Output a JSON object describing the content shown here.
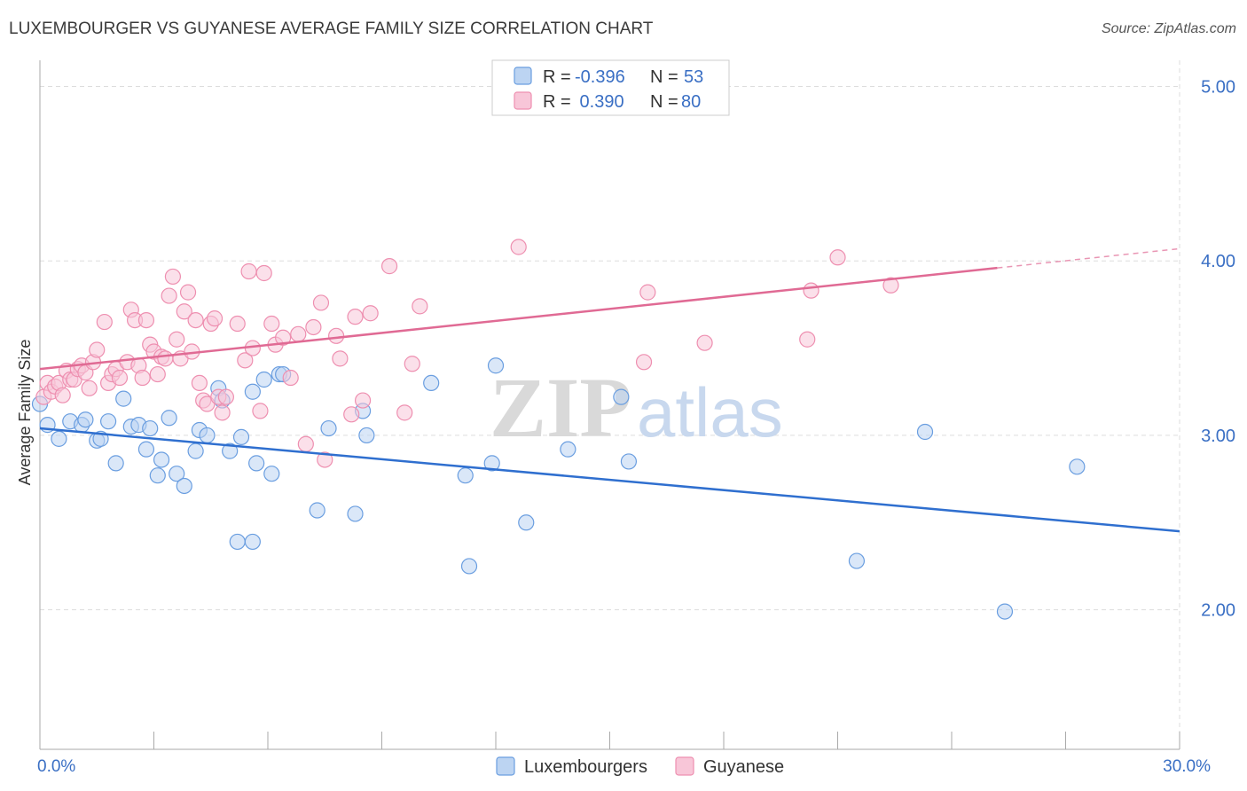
{
  "title": "LUXEMBOURGER VS GUYANESE AVERAGE FAMILY SIZE CORRELATION CHART",
  "source": "Source: ZipAtlas.com",
  "watermark": {
    "zip": "ZIP",
    "atlas": "atlas"
  },
  "colors": {
    "blue": "#6a9ee0",
    "blue_fill": "#bcd4f2",
    "blue_line": "#2f6fcf",
    "pink": "#ee8fb0",
    "pink_fill": "#f8c6d8",
    "pink_line": "#e06a94",
    "axis_label": "#3a6fc4",
    "grid": "#dddddd"
  },
  "legend": {
    "rows": [
      {
        "r_label": "R =",
        "r_value": "-0.396",
        "n_label": "N =",
        "n_value": "53"
      },
      {
        "r_label": "R =",
        "r_value": " 0.390",
        "n_label": "N =",
        "n_value": "80"
      }
    ]
  },
  "chart_data": {
    "type": "scatter",
    "title": "LUXEMBOURGER VS GUYANESE AVERAGE FAMILY SIZE CORRELATION CHART",
    "xlabel": "",
    "ylabel": "Average Family Size",
    "xlim": [
      0,
      30
    ],
    "ylim": [
      1.2,
      5.15
    ],
    "x_tick_labels": [
      {
        "value": 0,
        "label": "0.0%"
      },
      {
        "value": 30,
        "label": "30.0%"
      }
    ],
    "y_tick_labels": [
      {
        "value": 2,
        "label": "2.00"
      },
      {
        "value": 3,
        "label": "3.00"
      },
      {
        "value": 4,
        "label": "4.00"
      },
      {
        "value": 5,
        "label": "5.00"
      }
    ],
    "grid": true,
    "legend_position": "top-center",
    "series": [
      {
        "name": "Luxembourgers",
        "r": -0.396,
        "n": 53,
        "trend": {
          "x0": 0,
          "y0": 3.04,
          "x1": 30,
          "y1": 2.45,
          "solid_until": 30
        },
        "points": [
          [
            0.2,
            3.06
          ],
          [
            0.5,
            2.98
          ],
          [
            0.8,
            3.08
          ],
          [
            1.1,
            3.06
          ],
          [
            1.2,
            3.09
          ],
          [
            1.5,
            2.97
          ],
          [
            1.6,
            2.98
          ],
          [
            1.8,
            3.08
          ],
          [
            2.0,
            2.84
          ],
          [
            2.2,
            3.21
          ],
          [
            2.4,
            3.05
          ],
          [
            2.6,
            3.06
          ],
          [
            2.8,
            2.92
          ],
          [
            2.9,
            3.04
          ],
          [
            3.1,
            2.77
          ],
          [
            3.2,
            2.86
          ],
          [
            3.4,
            3.1
          ],
          [
            3.6,
            2.78
          ],
          [
            3.8,
            2.71
          ],
          [
            4.1,
            2.91
          ],
          [
            4.2,
            3.03
          ],
          [
            4.4,
            3.0
          ],
          [
            4.7,
            3.27
          ],
          [
            4.8,
            3.2
          ],
          [
            5.0,
            2.91
          ],
          [
            5.2,
            2.39
          ],
          [
            5.3,
            2.99
          ],
          [
            5.6,
            2.39
          ],
          [
            5.6,
            3.25
          ],
          [
            5.7,
            2.84
          ],
          [
            5.9,
            3.32
          ],
          [
            6.1,
            2.78
          ],
          [
            6.3,
            3.35
          ],
          [
            6.4,
            3.35
          ],
          [
            7.3,
            2.57
          ],
          [
            7.6,
            3.04
          ],
          [
            8.3,
            2.55
          ],
          [
            8.5,
            3.14
          ],
          [
            8.6,
            3.0
          ],
          [
            10.3,
            3.3
          ],
          [
            11.2,
            2.77
          ],
          [
            11.3,
            2.25
          ],
          [
            11.9,
            2.84
          ],
          [
            12.0,
            3.4
          ],
          [
            12.8,
            2.5
          ],
          [
            13.9,
            2.92
          ],
          [
            15.3,
            3.22
          ],
          [
            15.5,
            2.85
          ],
          [
            21.5,
            2.28
          ],
          [
            23.3,
            3.02
          ],
          [
            25.4,
            1.99
          ],
          [
            27.3,
            2.82
          ],
          [
            0.0,
            3.18
          ]
        ]
      },
      {
        "name": "Guyanese",
        "r": 0.39,
        "n": 80,
        "trend": {
          "x0": 0,
          "y0": 3.38,
          "x1": 30,
          "y1": 4.07,
          "solid_until": 25.2
        },
        "points": [
          [
            0.1,
            3.22
          ],
          [
            0.2,
            3.3
          ],
          [
            0.3,
            3.25
          ],
          [
            0.4,
            3.28
          ],
          [
            0.5,
            3.3
          ],
          [
            0.6,
            3.23
          ],
          [
            0.7,
            3.37
          ],
          [
            0.8,
            3.32
          ],
          [
            0.9,
            3.32
          ],
          [
            1.0,
            3.38
          ],
          [
            1.1,
            3.4
          ],
          [
            1.2,
            3.36
          ],
          [
            1.3,
            3.27
          ],
          [
            1.4,
            3.42
          ],
          [
            1.5,
            3.49
          ],
          [
            1.7,
            3.65
          ],
          [
            1.8,
            3.3
          ],
          [
            1.9,
            3.35
          ],
          [
            2.0,
            3.38
          ],
          [
            2.1,
            3.33
          ],
          [
            2.3,
            3.42
          ],
          [
            2.4,
            3.72
          ],
          [
            2.5,
            3.66
          ],
          [
            2.6,
            3.4
          ],
          [
            2.7,
            3.33
          ],
          [
            2.8,
            3.66
          ],
          [
            2.9,
            3.52
          ],
          [
            3.0,
            3.48
          ],
          [
            3.1,
            3.35
          ],
          [
            3.2,
            3.45
          ],
          [
            3.3,
            3.44
          ],
          [
            3.4,
            3.8
          ],
          [
            3.5,
            3.91
          ],
          [
            3.6,
            3.55
          ],
          [
            3.7,
            3.44
          ],
          [
            3.8,
            3.71
          ],
          [
            3.9,
            3.82
          ],
          [
            4.0,
            3.48
          ],
          [
            4.1,
            3.66
          ],
          [
            4.2,
            3.3
          ],
          [
            4.3,
            3.2
          ],
          [
            4.4,
            3.18
          ],
          [
            4.5,
            3.64
          ],
          [
            4.6,
            3.67
          ],
          [
            4.7,
            3.22
          ],
          [
            4.8,
            3.13
          ],
          [
            4.9,
            3.22
          ],
          [
            5.2,
            3.64
          ],
          [
            5.4,
            3.43
          ],
          [
            5.5,
            3.94
          ],
          [
            5.6,
            3.5
          ],
          [
            5.8,
            3.14
          ],
          [
            5.9,
            3.93
          ],
          [
            6.1,
            3.64
          ],
          [
            6.2,
            3.52
          ],
          [
            6.4,
            3.56
          ],
          [
            6.6,
            3.33
          ],
          [
            6.8,
            3.58
          ],
          [
            7.0,
            2.95
          ],
          [
            7.2,
            3.62
          ],
          [
            7.4,
            3.76
          ],
          [
            7.5,
            2.86
          ],
          [
            7.8,
            3.57
          ],
          [
            7.9,
            3.44
          ],
          [
            8.2,
            3.12
          ],
          [
            8.3,
            3.68
          ],
          [
            8.5,
            3.2
          ],
          [
            8.7,
            3.7
          ],
          [
            9.2,
            3.97
          ],
          [
            9.6,
            3.13
          ],
          [
            9.8,
            3.41
          ],
          [
            10.0,
            3.74
          ],
          [
            12.6,
            4.08
          ],
          [
            15.9,
            3.42
          ],
          [
            16.0,
            3.82
          ],
          [
            17.5,
            3.53
          ],
          [
            20.2,
            3.55
          ],
          [
            20.3,
            3.83
          ],
          [
            21.0,
            4.02
          ],
          [
            22.4,
            3.86
          ]
        ]
      }
    ]
  }
}
